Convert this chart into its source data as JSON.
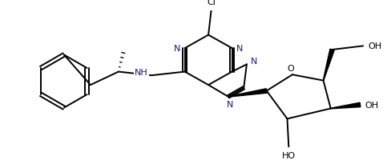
{
  "bg_color": "#ffffff",
  "bond_color": "#000000",
  "atom_color": "#1a1a6e",
  "lw": 1.4,
  "figsize": [
    4.88,
    2.01
  ],
  "dpi": 100,
  "xlim": [
    0,
    488
  ],
  "ylim": [
    0,
    201
  ]
}
